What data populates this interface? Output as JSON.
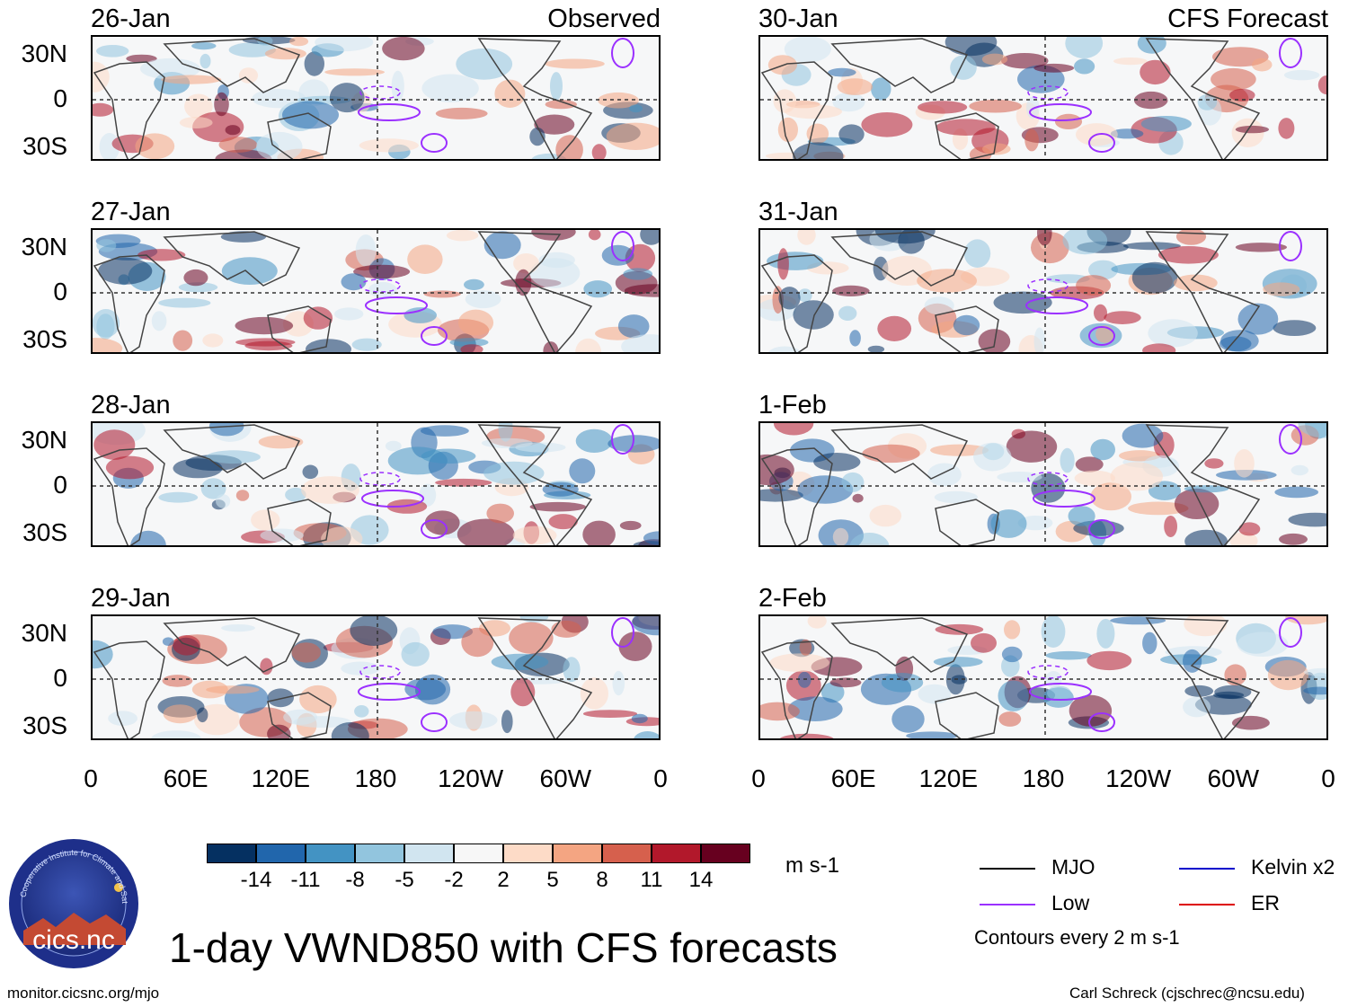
{
  "panels": [
    {
      "date": "26-Jan",
      "corner": "Observed"
    },
    {
      "date": "30-Jan",
      "corner": "CFS Forecast"
    },
    {
      "date": "27-Jan",
      "corner": ""
    },
    {
      "date": "31-Jan",
      "corner": ""
    },
    {
      "date": "28-Jan",
      "corner": ""
    },
    {
      "date": "1-Feb",
      "corner": ""
    },
    {
      "date": "29-Jan",
      "corner": ""
    },
    {
      "date": "2-Feb",
      "corner": ""
    }
  ],
  "lat_labels": [
    "30N",
    "0",
    "30S"
  ],
  "lon_labels": [
    "0",
    "60E",
    "120E",
    "180",
    "120W",
    "60W",
    "0"
  ],
  "colorbar": {
    "colors": [
      "#053061",
      "#2166ac",
      "#4393c3",
      "#92c5de",
      "#d1e5f0",
      "#f7f7f7",
      "#fddbc7",
      "#f4a582",
      "#d6604d",
      "#b2182b",
      "#67001f"
    ],
    "labels": [
      "-14",
      "-11",
      "-8",
      "-5",
      "-2",
      "2",
      "5",
      "8",
      "11",
      "14"
    ],
    "unit": "m s-1"
  },
  "legend": {
    "items": [
      {
        "label": "MJO",
        "color": "#000000"
      },
      {
        "label": "Kelvin x2",
        "color": "#0000cc"
      },
      {
        "label": "Low",
        "color": "#9b30ff"
      },
      {
        "label": "ER",
        "color": "#dd0000"
      }
    ],
    "note": "Contours every 2 m s-1"
  },
  "logo": {
    "text": "cics.nc",
    "ring_text": "Cooperative Institute for Climate and Satellites"
  },
  "title": "1-day VWND850 with CFS forecasts",
  "footer_left": "monitor.cicsnc.org/mjo",
  "footer_right": "Carl Schreck (cjschrec@ncsu.edu)"
}
